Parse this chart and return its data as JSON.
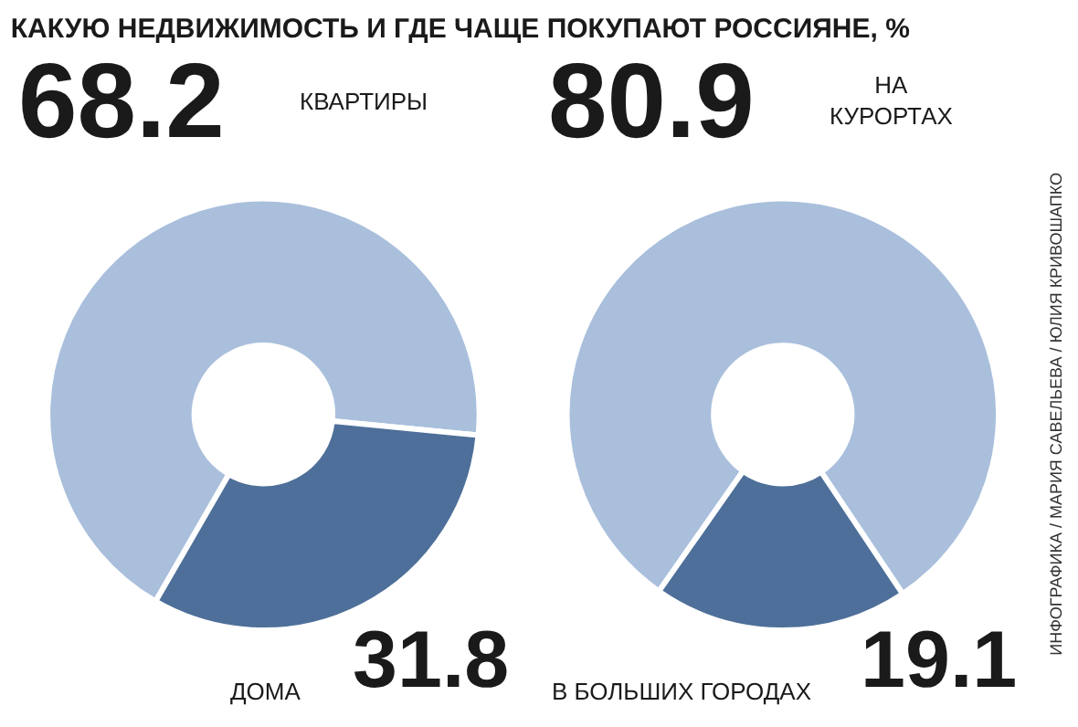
{
  "chart_data": [
    {
      "type": "donut",
      "title": "КАКУЮ НЕДВИЖИМОСТЬ И ГДЕ ЧАЩЕ ПОКУПАЮТ РОССИЯНЕ, %",
      "categories": [
        "КВАРТИРЫ",
        "ДОМА"
      ],
      "values": [
        68.2,
        31.8
      ],
      "colors": [
        "#a9bfdc",
        "#4d6f99"
      ],
      "data_labels": true
    },
    {
      "type": "donut",
      "categories": [
        "НА КУРОРТАХ",
        "В БОЛЬШИХ ГОРОДАХ"
      ],
      "values": [
        80.9,
        19.1
      ],
      "colors": [
        "#a9bfdc",
        "#4d6f99"
      ],
      "data_labels": true,
      "annotations": [
        "ИНФОГРАФИКА / МАРИЯ САВЕЛЬЕВА / ЮЛИЯ КРИВОШАПКО"
      ]
    }
  ]
}
